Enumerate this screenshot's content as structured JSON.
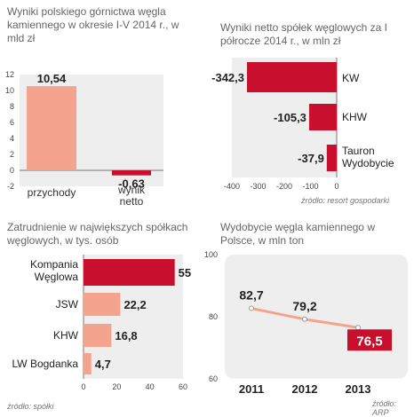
{
  "chart_data": [
    {
      "type": "bar",
      "title": "Wyniki polskiego górnictwa węgla kamiennego w okresie I-V 2014 r., w mld zł",
      "categories": [
        "przychody",
        "wynik\nnetto"
      ],
      "values": [
        10.54,
        -0.63
      ],
      "value_labels": [
        "10,54",
        "-0,63"
      ],
      "ylim": [
        -2,
        12
      ],
      "yticks": [
        "-2",
        "0",
        "2",
        "4",
        "6",
        "8",
        "10",
        "12"
      ],
      "colors": [
        "#f4a48e",
        "#c8102e"
      ]
    },
    {
      "type": "bar",
      "orientation": "horizontal",
      "title": "Wyniki netto spółek węglowych za I półrocze 2014 r., w mln zł",
      "categories": [
        "KW",
        "KHW",
        "Tauron Wydobycie"
      ],
      "values": [
        -342.3,
        -105.3,
        -37.9
      ],
      "value_labels": [
        "-342,3",
        "-105,3",
        "-37,9"
      ],
      "xlim": [
        -400,
        0
      ],
      "xticks": [
        "-400",
        "-300",
        "-200",
        "-100",
        "0"
      ],
      "source": "źródło: resort gospodarki",
      "color": "#c8102e"
    },
    {
      "type": "bar",
      "orientation": "horizontal",
      "title": "Zatrudnienie w największych spółkach węglowych, w tys. osób",
      "categories": [
        "Kompania Węglowa",
        "JSW",
        "KHW",
        "LW Bogdanka"
      ],
      "values": [
        55,
        22.2,
        16.8,
        4.7
      ],
      "value_labels": [
        "55",
        "22,2",
        "16,8",
        "4,7"
      ],
      "xlim": [
        0,
        60
      ],
      "xticks": [
        "0",
        "20",
        "40",
        "60"
      ],
      "source": "źródło: spółki",
      "colors": [
        "#c8102e",
        "#f4a48e",
        "#f4a48e",
        "#f4a48e"
      ]
    },
    {
      "type": "line",
      "title": "Wydobycie węgla kamiennego w Polsce, w mln ton",
      "x": [
        "2011",
        "2012",
        "2013"
      ],
      "values": [
        82.7,
        79.2,
        76.5
      ],
      "value_labels": [
        "82,7",
        "79,2",
        "76,5"
      ],
      "ylim": [
        60,
        100
      ],
      "yticks": [
        "60",
        "80",
        "100"
      ],
      "source": "źródło: ARP",
      "color": "#f4a48e",
      "highlight_color": "#c8102e"
    }
  ]
}
